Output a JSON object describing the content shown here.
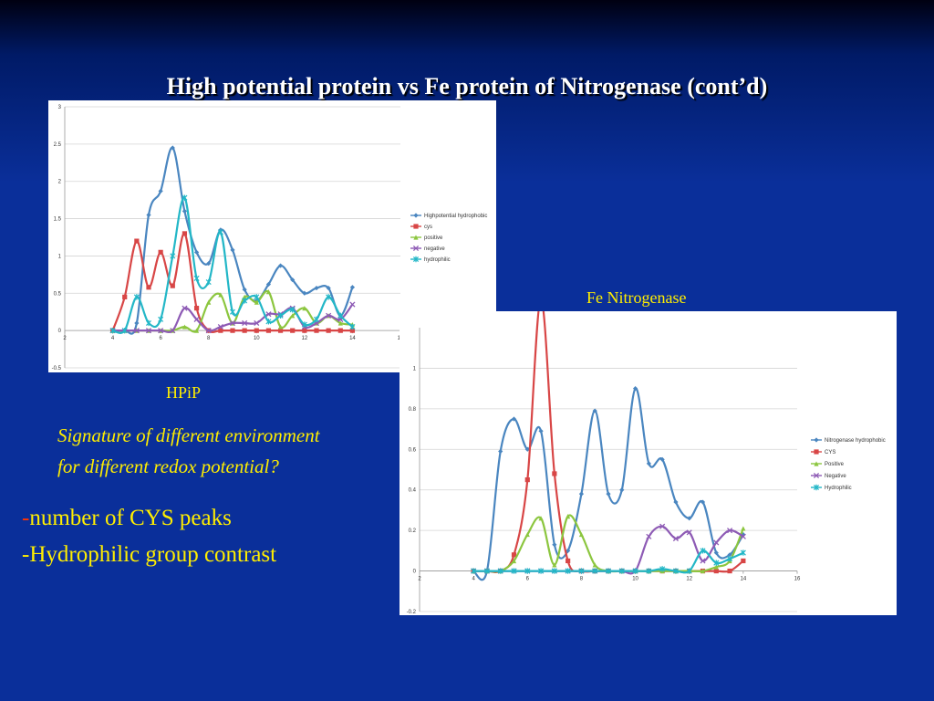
{
  "slide": {
    "title": "High potential protein vs Fe protein of Nitrogenase (cont’d)",
    "hpip_label": "HPiP",
    "fe_label": "Fe Nitrogenase",
    "signature_line1": "Signature of different environment",
    "signature_line2": "for different redox potential?",
    "bullet1_dash": "-",
    "bullet1_text": "number of CYS peaks",
    "bullet2": "-Hydrophilic group contrast"
  },
  "chart_data": [
    {
      "type": "line",
      "xlim": [
        2,
        16
      ],
      "ylim": [
        -0.5,
        3
      ],
      "xticks": [
        2,
        4,
        6,
        8,
        10,
        12,
        14,
        16
      ],
      "yticks": [
        -0.5,
        0,
        0.5,
        1,
        1.5,
        2,
        2.5,
        3
      ],
      "legend_position": "right",
      "grid": true,
      "x": [
        4,
        4.5,
        5,
        5.5,
        6,
        6.5,
        7,
        7.5,
        8,
        8.5,
        9,
        9.5,
        10,
        10.5,
        11,
        11.5,
        12,
        12.5,
        13,
        13.5,
        14
      ],
      "series": [
        {
          "name": "Highpotential hydrophobic",
          "color": "#4a86c0",
          "marker": "diamond",
          "values": [
            0,
            0,
            0.1,
            1.55,
            1.87,
            2.45,
            1.6,
            1.05,
            0.9,
            1.35,
            1.08,
            0.55,
            0.4,
            0.62,
            0.87,
            0.68,
            0.5,
            0.57,
            0.57,
            0.2,
            0.58
          ]
        },
        {
          "name": "cys",
          "color": "#d84646",
          "marker": "square",
          "values": [
            0,
            0.45,
            1.2,
            0.58,
            1.05,
            0.6,
            1.3,
            0.3,
            0,
            0,
            0,
            0,
            0,
            0,
            0,
            0,
            0,
            0,
            0,
            0,
            0
          ]
        },
        {
          "name": "positive",
          "color": "#8cc63f",
          "marker": "triangle",
          "values": [
            0,
            0,
            0,
            0,
            0,
            0,
            0.05,
            0,
            0.38,
            0.48,
            0.1,
            0.45,
            0.38,
            0.52,
            0.05,
            0.2,
            0.3,
            0.1,
            0.2,
            0.1,
            0.08
          ]
        },
        {
          "name": "negative",
          "color": "#8e5bb5",
          "marker": "x",
          "values": [
            0,
            0,
            0,
            0,
            0,
            0,
            0.3,
            0.15,
            0,
            0.05,
            0.1,
            0.1,
            0.1,
            0.22,
            0.22,
            0.3,
            0.05,
            0.1,
            0.2,
            0.15,
            0.35
          ]
        },
        {
          "name": "hydrophilic",
          "color": "#23b7c7",
          "marker": "star",
          "values": [
            0,
            0,
            0.45,
            0.1,
            0.15,
            1.0,
            1.78,
            0.7,
            0.65,
            1.32,
            0.25,
            0.4,
            0.45,
            0.12,
            0.2,
            0.28,
            0.08,
            0.15,
            0.45,
            0.2,
            0.05
          ]
        }
      ]
    },
    {
      "type": "line",
      "xlim": [
        2,
        16
      ],
      "ylim": [
        -0.2,
        1.2
      ],
      "xticks": [
        2,
        4,
        6,
        8,
        10,
        12,
        14,
        16
      ],
      "yticks": [
        -0.2,
        0,
        0.2,
        0.4,
        0.6,
        0.8,
        1
      ],
      "legend_position": "right",
      "grid": true,
      "x": [
        4,
        4.5,
        5,
        5.5,
        6,
        6.5,
        7,
        7.5,
        8,
        8.5,
        9,
        9.5,
        10,
        10.5,
        11,
        11.5,
        12,
        12.5,
        13,
        13.5,
        14
      ],
      "series": [
        {
          "name": "Nitrogenase hydrophobic",
          "color": "#4a86c0",
          "marker": "diamond",
          "values": [
            0,
            0,
            0.59,
            0.75,
            0.6,
            0.69,
            0.13,
            0.1,
            0.38,
            0.79,
            0.38,
            0.4,
            0.9,
            0.53,
            0.55,
            0.34,
            0.26,
            0.34,
            0.09,
            0.08,
            0.18
          ]
        },
        {
          "name": "CYS",
          "color": "#d84646",
          "marker": "square",
          "values": [
            0,
            0,
            0,
            0.08,
            0.45,
            1.34,
            0.48,
            0.05,
            0,
            0,
            0,
            0,
            0,
            0,
            0,
            0,
            0,
            0,
            0,
            0,
            0.05
          ]
        },
        {
          "name": "Positive",
          "color": "#8cc63f",
          "marker": "triangle",
          "values": [
            0,
            0,
            0,
            0.05,
            0.18,
            0.26,
            0.03,
            0.27,
            0.18,
            0.03,
            0,
            0,
            0,
            0,
            0,
            0,
            0,
            0,
            0.02,
            0.05,
            0.21
          ]
        },
        {
          "name": "Negative",
          "color": "#8e5bb5",
          "marker": "x",
          "values": [
            0,
            0,
            0,
            0,
            0,
            0,
            0,
            0,
            0,
            0,
            0,
            0,
            0,
            0.17,
            0.22,
            0.16,
            0.19,
            0.05,
            0.14,
            0.2,
            0.17
          ]
        },
        {
          "name": "Hydrophilic",
          "color": "#23b7c7",
          "marker": "star",
          "values": [
            0,
            0,
            0,
            0,
            0,
            0,
            0,
            0,
            0,
            0,
            0,
            0,
            0,
            0,
            0.01,
            0,
            0,
            0.1,
            0.04,
            0.06,
            0.09
          ]
        }
      ]
    }
  ]
}
